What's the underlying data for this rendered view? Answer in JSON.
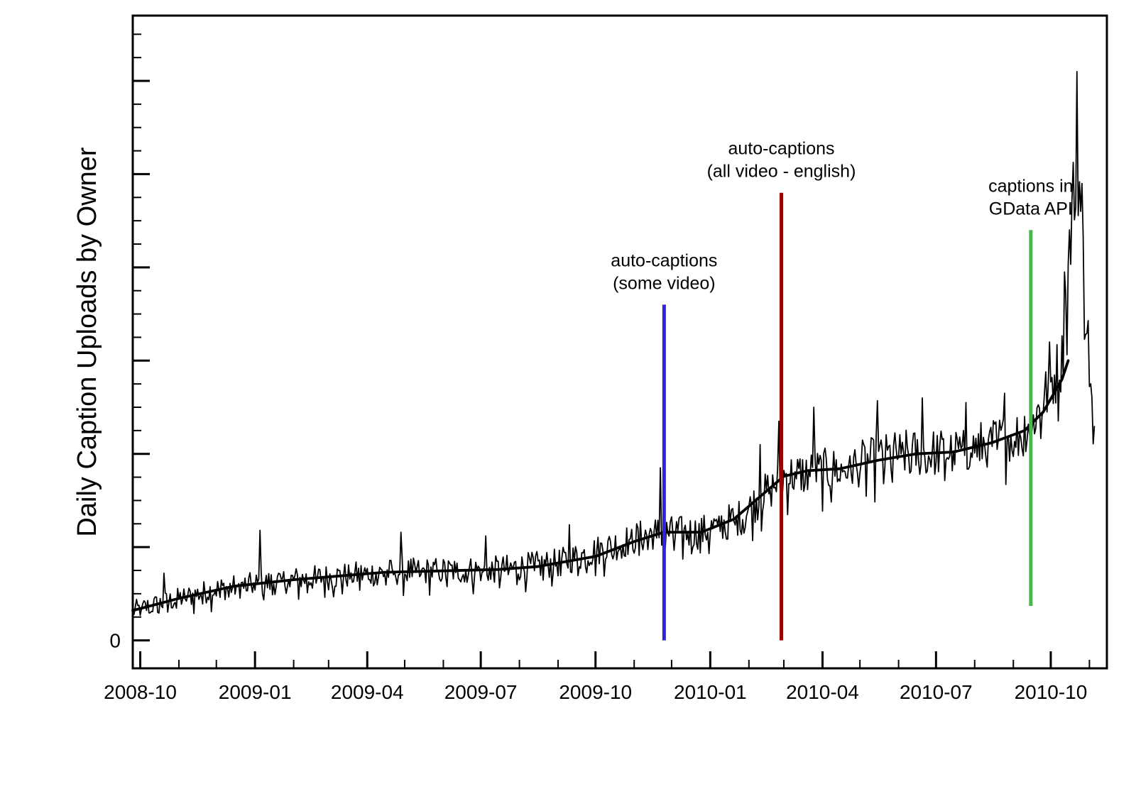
{
  "chart_data": {
    "type": "line",
    "title": "",
    "xlabel": "",
    "ylabel": "Daily Caption Uploads by Owner",
    "x_tick_labels": [
      "2008-10",
      "2009-01",
      "2009-04",
      "2009-07",
      "2009-10",
      "2010-01",
      "2010-04",
      "2010-07",
      "2010-10"
    ],
    "y_tick_labels": [
      "0"
    ],
    "x_range": [
      "2008-09-25",
      "2010-11-15"
    ],
    "y_range": [
      -0.3,
      6.7
    ],
    "y_tick_values": [
      0,
      1,
      2,
      3,
      4,
      5,
      6
    ],
    "y_minor_step": 0.25,
    "x_minor_ticks": "monthly",
    "grid": false,
    "legend": "none",
    "series": [
      {
        "kind": "daily",
        "color": "#000000",
        "anchors": [
          [
            "2008-09-25",
            0.32
          ],
          [
            "2008-12-01",
            0.55
          ],
          [
            "2009-02-01",
            0.65
          ],
          [
            "2009-04-15",
            0.73
          ],
          [
            "2009-07-15",
            0.76
          ],
          [
            "2009-09-01",
            0.83
          ],
          [
            "2009-11-15",
            1.15
          ],
          [
            "2009-12-25",
            1.16
          ],
          [
            "2010-01-25",
            1.32
          ],
          [
            "2010-03-01",
            1.76
          ],
          [
            "2010-04-15",
            1.84
          ],
          [
            "2010-06-01",
            2.0
          ],
          [
            "2010-07-15",
            2.02
          ],
          [
            "2010-09-05",
            2.2
          ],
          [
            "2010-09-20",
            2.44
          ],
          [
            "2010-10-10",
            3.0
          ],
          [
            "2010-10-22",
            5.3
          ],
          [
            "2010-11-05",
            2.0
          ]
        ],
        "spikes": [
          [
            "2008-10-20",
            0.72
          ],
          [
            "2009-01-05",
            1.18
          ],
          [
            "2009-04-28",
            1.16
          ],
          [
            "2009-07-05",
            1.12
          ],
          [
            "2009-09-10",
            1.24
          ],
          [
            "2009-11-22",
            1.85
          ],
          [
            "2010-02-10",
            2.1
          ],
          [
            "2010-02-25",
            2.35
          ],
          [
            "2010-03-25",
            2.5
          ],
          [
            "2010-05-15",
            2.57
          ],
          [
            "2010-06-20",
            2.6
          ],
          [
            "2010-07-25",
            2.55
          ],
          [
            "2010-08-25",
            2.65
          ],
          [
            "2010-09-30",
            3.2
          ],
          [
            "2010-10-12",
            3.95
          ],
          [
            "2010-10-22",
            6.1
          ],
          [
            "2010-10-26",
            4.9
          ],
          [
            "2010-11-05",
            2.3
          ]
        ]
      },
      {
        "kind": "smoothed",
        "color": "#000000",
        "points": [
          [
            "2008-09-25",
            0.32
          ],
          [
            "2008-11-01",
            0.45
          ],
          [
            "2008-12-15",
            0.58
          ],
          [
            "2009-02-01",
            0.65
          ],
          [
            "2009-04-15",
            0.73
          ],
          [
            "2009-07-15",
            0.76
          ],
          [
            "2009-08-15",
            0.79
          ],
          [
            "2009-10-01",
            0.9
          ],
          [
            "2009-11-01",
            1.06
          ],
          [
            "2009-11-25",
            1.16
          ],
          [
            "2009-12-25",
            1.16
          ],
          [
            "2010-01-20",
            1.3
          ],
          [
            "2010-02-15",
            1.6
          ],
          [
            "2010-03-01",
            1.76
          ],
          [
            "2010-03-20",
            1.82
          ],
          [
            "2010-04-15",
            1.84
          ],
          [
            "2010-05-15",
            1.93
          ],
          [
            "2010-06-15",
            2.0
          ],
          [
            "2010-07-15",
            2.02
          ],
          [
            "2010-08-15",
            2.12
          ],
          [
            "2010-09-10",
            2.25
          ],
          [
            "2010-09-25",
            2.45
          ],
          [
            "2010-10-10",
            2.8
          ],
          [
            "2010-10-15",
            3.0
          ]
        ]
      }
    ],
    "events": [
      {
        "date": "2009-11-25",
        "color": "#3322dd",
        "y_start": 0,
        "y_end": 3.6,
        "label_lines": [
          "auto-captions",
          "(some video)"
        ]
      },
      {
        "date": "2010-02-27",
        "color": "#990000",
        "y_start": 0,
        "y_end": 4.8,
        "label_lines": [
          "auto-captions",
          "(all video - english)"
        ]
      },
      {
        "date": "2010-09-15",
        "color": "#44bb44",
        "y_start": 0.37,
        "y_end": 4.4,
        "label_lines": [
          "captions in",
          "GData API"
        ]
      }
    ]
  }
}
